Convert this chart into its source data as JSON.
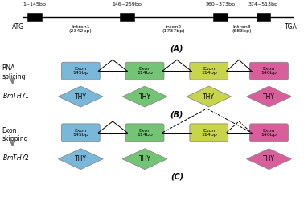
{
  "bg_color": "#ffffff",
  "exon_colors": [
    "#7ab8d9",
    "#74c476",
    "#c8d44a",
    "#d95f9c"
  ],
  "exon_labels": [
    "Exon\n145bp",
    "Exon\n114bp",
    "Exon\n114bp",
    "Exon\n140bp"
  ],
  "thy_colors": [
    "#7ab8d9",
    "#74c476",
    "#c8d44a",
    "#d95f9c"
  ],
  "intron_labels": [
    "Intron1\n(2342bp)",
    "Inton2\n(1737bp)",
    "Intron3\n(683bp)"
  ],
  "bp_labels": [
    "1~145bp",
    "146~259bp",
    "260~373bp",
    "374~513bp"
  ],
  "panel_A_label": "(A)",
  "panel_B_label": "(B)",
  "panel_C_label": "(C)",
  "atg": "ATG",
  "tga": "TGA"
}
